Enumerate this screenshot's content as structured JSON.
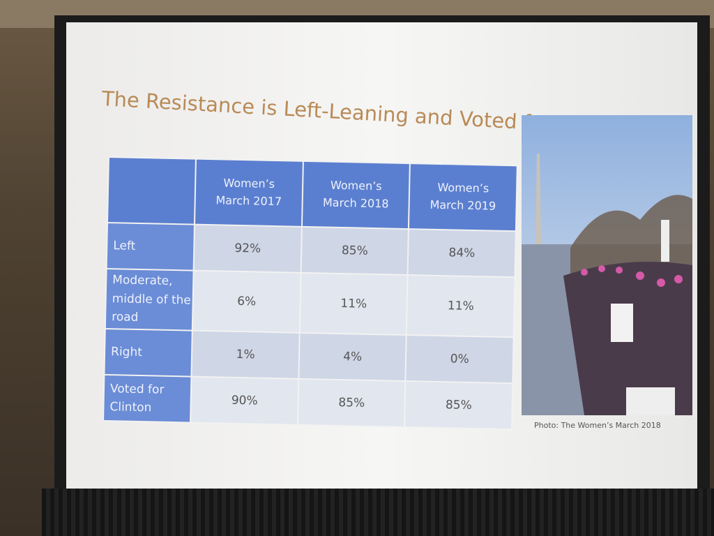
{
  "title": "The Resistance is Left-Leaning and Voted for Clinton",
  "table": {
    "header": [
      "Women’s March 2017",
      "Women’s March 2018",
      "Women’s March 2019"
    ],
    "rows": [
      [
        "Left",
        "92%",
        "85%",
        "84%"
      ],
      [
        "Moderate, middle of the road",
        "6%",
        "11%",
        "11%"
      ],
      [
        "Right",
        "1%",
        "4%",
        "0%"
      ],
      [
        "Voted for Clinton",
        "90%",
        "85%",
        "85%"
      ]
    ]
  },
  "caption": "Photo: The Women’s March 2018"
}
